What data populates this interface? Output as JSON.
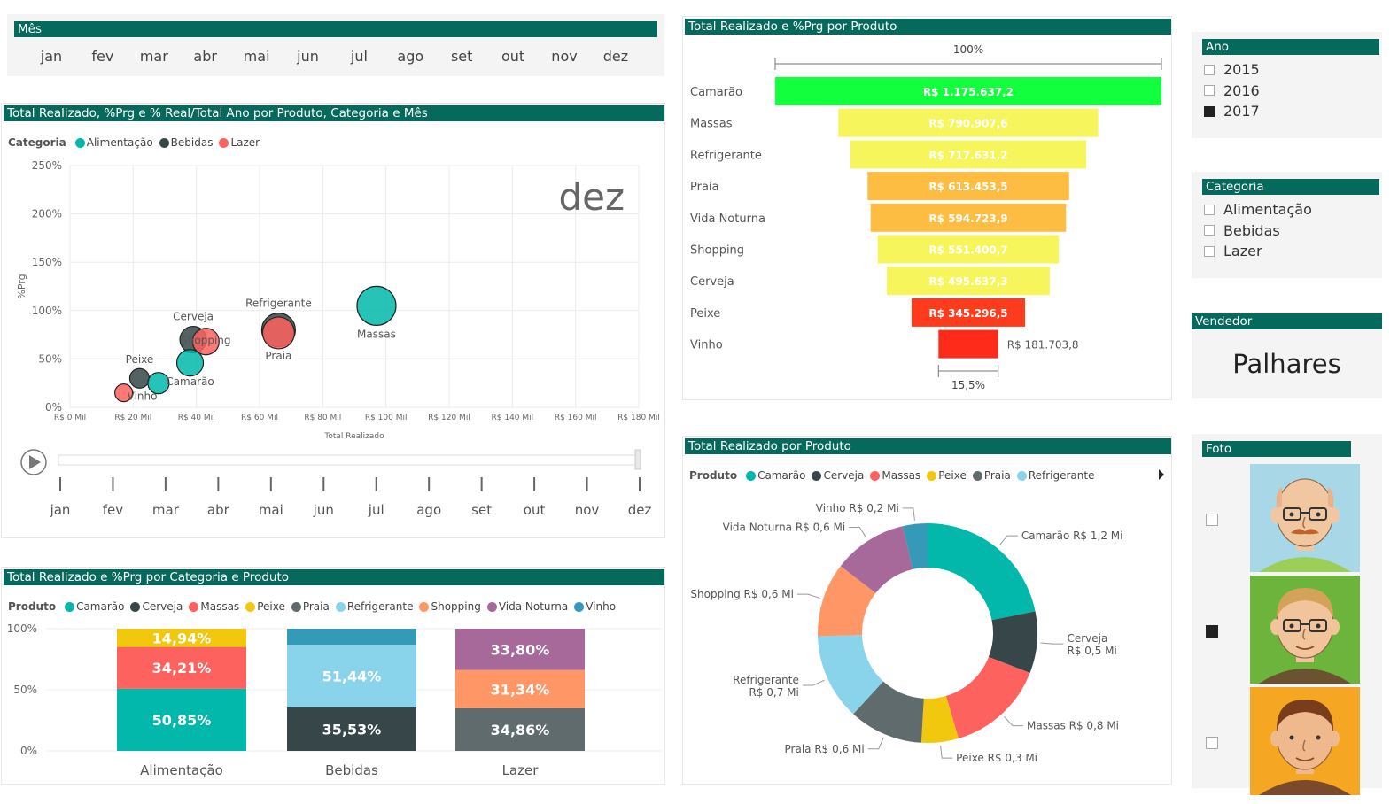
{
  "month_slicer": {
    "title": "Mês",
    "months": [
      "jan",
      "fev",
      "mar",
      "abr",
      "mai",
      "jun",
      "jul",
      "ago",
      "set",
      "out",
      "nov",
      "dez"
    ]
  },
  "scatter": {
    "title": "Total Realizado, %Prg e % Real/Total Ano por Produto, Categoria e Mês",
    "legend_title": "Categoria",
    "legend": [
      {
        "name": "Alimentação",
        "color": "#01b8aa"
      },
      {
        "name": "Bebidas",
        "color": "#374649"
      },
      {
        "name": "Lazer",
        "color": "#fd625e"
      }
    ],
    "watermark": "dez",
    "play_months": [
      "jan",
      "fev",
      "mar",
      "abr",
      "mai",
      "jun",
      "jul",
      "ago",
      "set",
      "out",
      "nov",
      "dez"
    ]
  },
  "funnel": {
    "title": "Total Realizado e %Prg por Produto",
    "top_label": "100%",
    "bottom_label": "15,5%"
  },
  "donut": {
    "title": "Total Realizado por Produto",
    "legend_title": "Produto",
    "legend": [
      {
        "name": "Camarão",
        "color": "#01b8aa"
      },
      {
        "name": "Cerveja",
        "color": "#374649"
      },
      {
        "name": "Massas",
        "color": "#fd625e"
      },
      {
        "name": "Peixe",
        "color": "#f2c80f"
      },
      {
        "name": "Praia",
        "color": "#5f6b6d"
      },
      {
        "name": "Refrigerante",
        "color": "#8ad4eb"
      }
    ]
  },
  "stacked": {
    "title": "Total Realizado e %Prg por Categoria e Produto",
    "legend_title": "Produto",
    "legend": [
      {
        "name": "Camarão",
        "color": "#01b8aa"
      },
      {
        "name": "Cerveja",
        "color": "#374649"
      },
      {
        "name": "Massas",
        "color": "#fd625e"
      },
      {
        "name": "Peixe",
        "color": "#f2c80f"
      },
      {
        "name": "Praia",
        "color": "#5f6b6d"
      },
      {
        "name": "Refrigerante",
        "color": "#8ad4eb"
      },
      {
        "name": "Shopping",
        "color": "#fe9666"
      },
      {
        "name": "Vida Noturna",
        "color": "#a66999"
      },
      {
        "name": "Vinho",
        "color": "#3599b8"
      }
    ]
  },
  "ano_slicer": {
    "title": "Ano",
    "items": [
      {
        "label": "2015",
        "checked": false
      },
      {
        "label": "2016",
        "checked": false
      },
      {
        "label": "2017",
        "checked": true
      }
    ]
  },
  "categoria_slicer": {
    "title": "Categoria",
    "items": [
      {
        "label": "Alimentação",
        "checked": false
      },
      {
        "label": "Bebidas",
        "checked": false
      },
      {
        "label": "Lazer",
        "checked": false
      }
    ]
  },
  "vendedor": {
    "title": "Vendedor",
    "value": "Palhares"
  },
  "foto": {
    "title": "Foto",
    "items": [
      {
        "checked": false,
        "bg": "#a8d8e8"
      },
      {
        "checked": true,
        "bg": "#6cb43c"
      },
      {
        "checked": false,
        "bg": "#f5a623"
      }
    ]
  },
  "chart_data": [
    {
      "type": "scatter",
      "title": "Total Realizado, %Prg e % Real/Total Ano por Produto, Categoria e Mês",
      "xlabel": "Total Realizado",
      "ylabel": "%Prg",
      "xlim": [
        0,
        180
      ],
      "ylim": [
        0,
        250
      ],
      "x_ticks": [
        "R$ 0 Mil",
        "R$ 20 Mil",
        "R$ 40 Mil",
        "R$ 60 Mil",
        "R$ 80 Mil",
        "R$ 100 Mil",
        "R$ 120 Mil",
        "R$ 140 Mil",
        "R$ 160 Mil",
        "R$ 180 Mil"
      ],
      "y_ticks": [
        "0%",
        "50%",
        "100%",
        "150%",
        "200%",
        "250%"
      ],
      "points": [
        {
          "label": "Massas",
          "category": "Alimentação",
          "x": 97,
          "y": 105,
          "size": 22
        },
        {
          "label": "Refrigerante",
          "category": "Bebidas",
          "x": 66,
          "y": 80,
          "size": 19
        },
        {
          "label": "Praia",
          "category": "Lazer",
          "x": 66,
          "y": 77,
          "size": 18
        },
        {
          "label": "Cerveja",
          "category": "Bebidas",
          "x": 39,
          "y": 70,
          "size": 15
        },
        {
          "label": "Shopping",
          "category": "Lazer",
          "x": 43,
          "y": 68,
          "size": 15
        },
        {
          "label": "Camarão",
          "category": "Alimentação",
          "x": 38,
          "y": 46,
          "size": 15
        },
        {
          "label": "Peixe",
          "category": "Bebidas",
          "x": 22,
          "y": 30,
          "size": 11
        },
        {
          "label": "",
          "category": "Alimentação",
          "x": 28,
          "y": 25,
          "size": 12
        },
        {
          "label": "Vinho",
          "category": "Lazer",
          "x": 17,
          "y": 15,
          "size": 10
        }
      ]
    },
    {
      "type": "bar",
      "subtype": "funnel",
      "categories": [
        "Camarão",
        "Massas",
        "Refrigerante",
        "Praia",
        "Vida Noturna",
        "Shopping",
        "Cerveja",
        "Peixe",
        "Vinho"
      ],
      "values": [
        1175637.2,
        790907.6,
        717631.2,
        613453.5,
        594723.9,
        551400.7,
        495637.3,
        345296.5,
        181703.8
      ],
      "value_labels": [
        "R$ 1.175.637,2",
        "R$ 790.907,6",
        "R$ 717.631,2",
        "R$ 613.453,5",
        "R$ 594.723,9",
        "R$ 551.400,7",
        "R$ 495.637,3",
        "R$ 345.296,5",
        "R$ 181.703,8"
      ],
      "colors": [
        "#11ff3c",
        "#f6f65c",
        "#f6f65c",
        "#fdbd42",
        "#fdbd42",
        "#f6f65c",
        "#f6f65c",
        "#fe3b1c",
        "#fe2a1a"
      ]
    },
    {
      "type": "pie",
      "subtype": "donut",
      "slices": [
        {
          "name": "Camarão",
          "value": 1.2,
          "label": "Camarão R$ 1,2 Mi",
          "color": "#01b8aa"
        },
        {
          "name": "Cerveja",
          "value": 0.5,
          "label": "Cerveja R$ 0,5 Mi",
          "color": "#374649"
        },
        {
          "name": "Massas",
          "value": 0.8,
          "label": "Massas R$ 0,8 Mi",
          "color": "#fd625e"
        },
        {
          "name": "Peixe",
          "value": 0.3,
          "label": "Peixe R$ 0,3 Mi",
          "color": "#f2c80f"
        },
        {
          "name": "Praia",
          "value": 0.6,
          "label": "Praia R$ 0,6 Mi",
          "color": "#5f6b6d"
        },
        {
          "name": "Refrigerante",
          "value": 0.7,
          "label": "Refrigerante R$ 0,7 Mi",
          "color": "#8ad4eb"
        },
        {
          "name": "Shopping",
          "value": 0.6,
          "label": "Shopping R$ 0,6 Mi",
          "color": "#fe9666"
        },
        {
          "name": "Vida Noturna",
          "value": 0.6,
          "label": "Vida Noturna R$ 0,6 Mi",
          "color": "#a66999"
        },
        {
          "name": "Vinho",
          "value": 0.2,
          "label": "Vinho R$ 0,2 Mi",
          "color": "#3599b8"
        }
      ]
    },
    {
      "type": "bar",
      "subtype": "stacked-100",
      "categories": [
        "Alimentação",
        "Bebidas",
        "Lazer"
      ],
      "y_ticks": [
        "0%",
        "50%",
        "100%"
      ],
      "stacks": [
        [
          {
            "name": "Camarão",
            "value": 50.85,
            "label": "50,85%",
            "color": "#01b8aa"
          },
          {
            "name": "Massas",
            "value": 34.21,
            "label": "34,21%",
            "color": "#fd625e"
          },
          {
            "name": "Peixe",
            "value": 14.94,
            "label": "14,94%",
            "color": "#f2c80f"
          }
        ],
        [
          {
            "name": "Cerveja",
            "value": 35.53,
            "label": "35,53%",
            "color": "#374649"
          },
          {
            "name": "Refrigerante",
            "value": 51.44,
            "label": "51,44%",
            "color": "#8ad4eb"
          },
          {
            "name": "Vinho",
            "value": 13.03,
            "label": "",
            "color": "#3599b8"
          }
        ],
        [
          {
            "name": "Praia",
            "value": 34.86,
            "label": "34,86%",
            "color": "#5f6b6d"
          },
          {
            "name": "Shopping",
            "value": 31.34,
            "label": "31,34%",
            "color": "#fe9666"
          },
          {
            "name": "Vida Noturna",
            "value": 33.8,
            "label": "33,80%",
            "color": "#a66999"
          }
        ]
      ]
    }
  ]
}
